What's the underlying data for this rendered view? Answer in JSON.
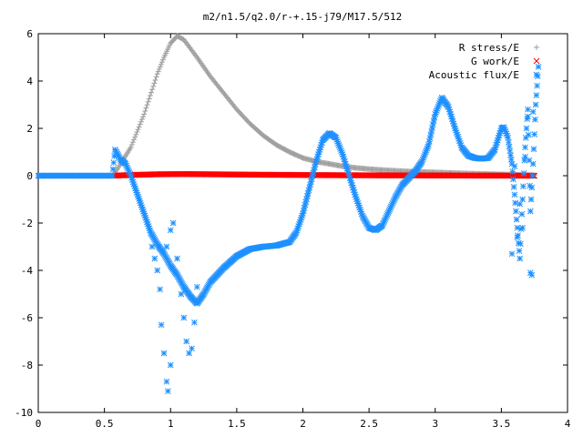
{
  "chart_data": {
    "type": "scatter",
    "title": "m2/n1.5/q2.0/r-+.15-j79/M17.5/512",
    "xlabel": "",
    "ylabel": "",
    "xlim": [
      0,
      4
    ],
    "ylim": [
      -10,
      6
    ],
    "x_ticks": [
      "0",
      "0.5",
      "1",
      "1.5",
      "2",
      "2.5",
      "3",
      "3.5",
      "4"
    ],
    "y_ticks": [
      "6",
      "4",
      "2",
      "0",
      "-2",
      "-4",
      "-6",
      "-8",
      "-10"
    ],
    "grid": false,
    "legend_position": "top-right",
    "series": [
      {
        "name": "R stress/E",
        "marker": "plus",
        "color": "#a0a0a0",
        "points": [
          [
            0.56,
            0.0
          ],
          [
            0.6,
            0.3
          ],
          [
            0.7,
            1.2
          ],
          [
            0.8,
            2.6
          ],
          [
            0.9,
            4.3
          ],
          [
            0.95,
            5.0
          ],
          [
            1.0,
            5.6
          ],
          [
            1.05,
            5.9
          ],
          [
            1.1,
            5.75
          ],
          [
            1.2,
            5.0
          ],
          [
            1.3,
            4.2
          ],
          [
            1.4,
            3.5
          ],
          [
            1.5,
            2.8
          ],
          [
            1.6,
            2.2
          ],
          [
            1.7,
            1.7
          ],
          [
            1.8,
            1.3
          ],
          [
            1.9,
            1.0
          ],
          [
            2.0,
            0.75
          ],
          [
            2.1,
            0.6
          ],
          [
            2.2,
            0.5
          ],
          [
            2.3,
            0.4
          ],
          [
            2.4,
            0.33
          ],
          [
            2.5,
            0.28
          ],
          [
            2.6,
            0.24
          ],
          [
            2.8,
            0.18
          ],
          [
            3.0,
            0.14
          ],
          [
            3.2,
            0.1
          ],
          [
            3.4,
            0.07
          ],
          [
            3.6,
            0.04
          ],
          [
            3.75,
            0.02
          ]
        ]
      },
      {
        "name": "G work/E",
        "marker": "cross",
        "color": "#ff0000",
        "points": [
          [
            0.56,
            0.0
          ],
          [
            0.7,
            0.03
          ],
          [
            0.9,
            0.06
          ],
          [
            1.1,
            0.07
          ],
          [
            1.3,
            0.06
          ],
          [
            1.5,
            0.05
          ],
          [
            1.7,
            0.04
          ],
          [
            2.0,
            0.03
          ],
          [
            2.3,
            0.02
          ],
          [
            2.6,
            0.015
          ],
          [
            3.0,
            0.01
          ],
          [
            3.4,
            0.005
          ],
          [
            3.75,
            0.0
          ]
        ]
      },
      {
        "name": "Acoustic flux/E",
        "marker": "star",
        "color": "#1e90ff",
        "points": [
          [
            0.0,
            0.0
          ],
          [
            0.56,
            0.0
          ],
          [
            0.58,
            1.1
          ],
          [
            0.62,
            0.7
          ],
          [
            0.66,
            0.5
          ],
          [
            0.7,
            0.0
          ],
          [
            0.75,
            -0.8
          ],
          [
            0.8,
            -1.6
          ],
          [
            0.85,
            -2.4
          ],
          [
            0.9,
            -2.9
          ],
          [
            0.95,
            -3.3
          ],
          [
            1.0,
            -3.8
          ],
          [
            1.05,
            -4.2
          ],
          [
            1.1,
            -4.7
          ],
          [
            1.15,
            -5.1
          ],
          [
            1.2,
            -5.4
          ],
          [
            1.25,
            -5.0
          ],
          [
            1.3,
            -4.5
          ],
          [
            1.4,
            -3.9
          ],
          [
            1.5,
            -3.4
          ],
          [
            1.6,
            -3.1
          ],
          [
            1.7,
            -3.0
          ],
          [
            1.8,
            -2.95
          ],
          [
            1.9,
            -2.8
          ],
          [
            1.95,
            -2.4
          ],
          [
            2.0,
            -1.6
          ],
          [
            2.05,
            -0.5
          ],
          [
            2.1,
            0.6
          ],
          [
            2.15,
            1.5
          ],
          [
            2.2,
            1.8
          ],
          [
            2.25,
            1.6
          ],
          [
            2.3,
            0.9
          ],
          [
            2.35,
            0.0
          ],
          [
            2.4,
            -0.9
          ],
          [
            2.45,
            -1.7
          ],
          [
            2.5,
            -2.2
          ],
          [
            2.55,
            -2.3
          ],
          [
            2.6,
            -2.1
          ],
          [
            2.65,
            -1.5
          ],
          [
            2.7,
            -0.9
          ],
          [
            2.75,
            -0.4
          ],
          [
            2.8,
            -0.1
          ],
          [
            2.85,
            0.2
          ],
          [
            2.9,
            0.6
          ],
          [
            2.95,
            1.3
          ],
          [
            3.0,
            2.6
          ],
          [
            3.05,
            3.3
          ],
          [
            3.1,
            2.9
          ],
          [
            3.15,
            2.0
          ],
          [
            3.2,
            1.2
          ],
          [
            3.25,
            0.85
          ],
          [
            3.3,
            0.75
          ],
          [
            3.35,
            0.72
          ],
          [
            3.4,
            0.75
          ],
          [
            3.45,
            1.1
          ],
          [
            3.5,
            2.0
          ],
          [
            3.52,
            2.05
          ],
          [
            3.55,
            1.6
          ],
          [
            3.58,
            0.5
          ],
          [
            3.6,
            -0.8
          ],
          [
            3.62,
            -2.2
          ],
          [
            3.64,
            -3.5
          ],
          [
            3.66,
            -1.0
          ],
          [
            3.68,
            1.2
          ],
          [
            3.7,
            2.8
          ],
          [
            3.72,
            -1.5
          ],
          [
            3.74,
            0.5
          ],
          [
            3.76,
            3.0
          ],
          [
            3.78,
            4.6
          ]
        ],
        "scatter_points": [
          [
            0.97,
            -8.7
          ],
          [
            0.98,
            -9.1
          ],
          [
            1.0,
            -8.0
          ],
          [
            0.95,
            -7.5
          ],
          [
            0.93,
            -6.3
          ],
          [
            0.92,
            -4.8
          ],
          [
            0.9,
            -4.0
          ],
          [
            0.97,
            -3.0
          ],
          [
            1.0,
            -2.3
          ],
          [
            1.02,
            -2.0
          ],
          [
            1.08,
            -5.0
          ],
          [
            1.1,
            -6.0
          ],
          [
            1.12,
            -7.0
          ],
          [
            1.14,
            -7.5
          ],
          [
            1.16,
            -7.3
          ],
          [
            1.18,
            -6.2
          ],
          [
            1.2,
            -4.7
          ],
          [
            1.05,
            -3.5
          ],
          [
            0.88,
            -3.5
          ],
          [
            0.86,
            -3.0
          ],
          [
            3.58,
            -3.3
          ],
          [
            3.62,
            -2.6
          ],
          [
            3.66,
            -2.2
          ],
          [
            3.68,
            0.8
          ],
          [
            3.7,
            2.5
          ],
          [
            3.72,
            -4.1
          ],
          [
            3.73,
            -4.2
          ],
          [
            3.74,
            2.7
          ],
          [
            3.64,
            -1.2
          ],
          [
            3.6,
            0.4
          ]
        ]
      }
    ]
  }
}
